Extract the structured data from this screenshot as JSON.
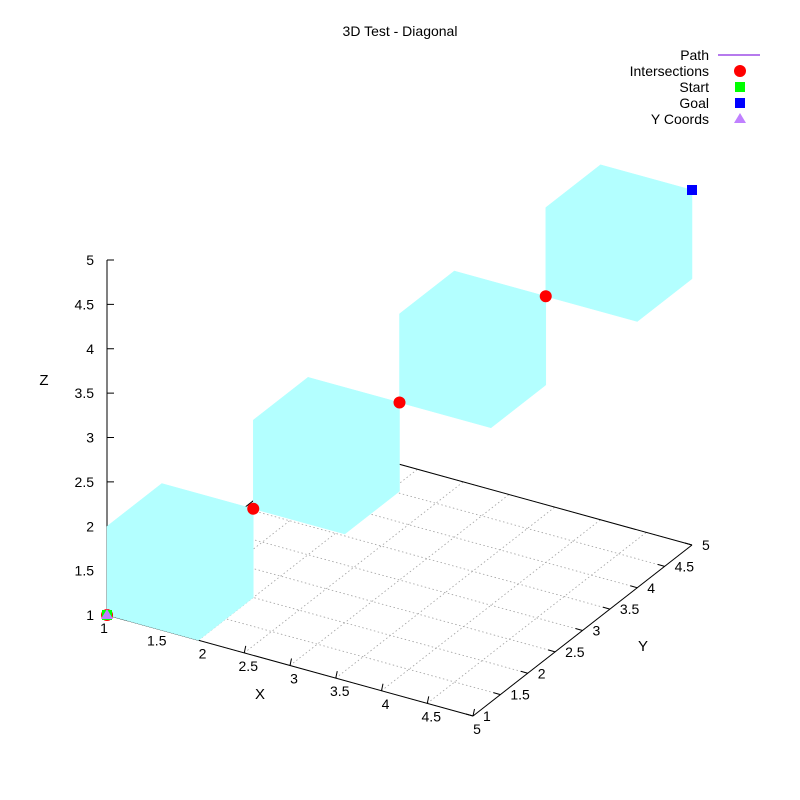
{
  "chart_data": {
    "type": "scatter",
    "projection": "3d",
    "title": "3D Test - Diagonal",
    "xlabel": "X",
    "ylabel": "Y",
    "zlabel": "Z",
    "xlim": [
      1,
      5
    ],
    "ylim": [
      1,
      5
    ],
    "zlim": [
      1,
      5
    ],
    "x_ticks": [
      "1",
      "1.5",
      "2",
      "2.5",
      "3",
      "3.5",
      "4",
      "4.5",
      "5"
    ],
    "y_ticks": [
      "1",
      "1.5",
      "2",
      "2.5",
      "3",
      "3.5",
      "4",
      "4.5",
      "5"
    ],
    "z_ticks": [
      "1",
      "1.5",
      "2",
      "2.5",
      "3",
      "3.5",
      "4",
      "4.5",
      "5"
    ],
    "grid": true,
    "legend_position": "top-right",
    "cubes": [
      {
        "x": [
          1,
          2
        ],
        "y": [
          1,
          2
        ],
        "z": [
          1,
          2
        ]
      },
      {
        "x": [
          2,
          3
        ],
        "y": [
          2,
          3
        ],
        "z": [
          2,
          3
        ]
      },
      {
        "x": [
          3,
          4
        ],
        "y": [
          3,
          4
        ],
        "z": [
          3,
          4
        ]
      },
      {
        "x": [
          4,
          5
        ],
        "y": [
          4,
          5
        ],
        "z": [
          4,
          5
        ]
      }
    ],
    "cube_color": "#b3ffff",
    "series": [
      {
        "name": "Path",
        "marker": "line",
        "color": "#8a2be2",
        "points": [
          [
            1,
            1,
            1
          ],
          [
            2,
            2,
            2
          ],
          [
            3,
            3,
            3
          ],
          [
            4,
            4,
            4
          ],
          [
            5,
            5,
            5
          ]
        ]
      },
      {
        "name": "Intersections",
        "marker": "circle",
        "color": "#ff0000",
        "points": [
          [
            1,
            1,
            1
          ],
          [
            2,
            2,
            2
          ],
          [
            3,
            3,
            3
          ],
          [
            4,
            4,
            4
          ]
        ]
      },
      {
        "name": "Start",
        "marker": "square",
        "color": "#00ff00",
        "points": [
          [
            1,
            1,
            1
          ]
        ]
      },
      {
        "name": "Goal",
        "marker": "square",
        "color": "#0000ff",
        "points": [
          [
            5,
            5,
            5
          ]
        ]
      },
      {
        "name": "Y Coords",
        "marker": "triangle",
        "color": "#c080ff",
        "points": [
          [
            1,
            1,
            1
          ]
        ]
      }
    ]
  }
}
